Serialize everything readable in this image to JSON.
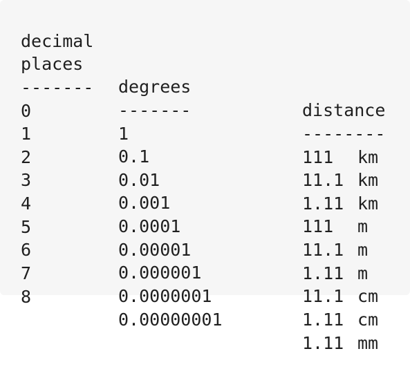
{
  "header": {
    "col1_line1": "decimal",
    "col1_line2": "places",
    "col2": "degrees",
    "col3": "distance",
    "rule1": "-------",
    "rule2": "-------",
    "rule3": "--------"
  },
  "rows": [
    {
      "places": "0",
      "degrees": "1",
      "distance": "111",
      "unit": "km"
    },
    {
      "places": "1",
      "degrees": "0.1",
      "distance": "11.1",
      "unit": "km"
    },
    {
      "places": "2",
      "degrees": "0.01",
      "distance": "1.11",
      "unit": "km"
    },
    {
      "places": "3",
      "degrees": "0.001",
      "distance": "111",
      "unit": "m"
    },
    {
      "places": "4",
      "degrees": "0.0001",
      "distance": "11.1",
      "unit": "m"
    },
    {
      "places": "5",
      "degrees": "0.00001",
      "distance": "1.11",
      "unit": "m"
    },
    {
      "places": "6",
      "degrees": "0.000001",
      "distance": "11.1",
      "unit": "cm"
    },
    {
      "places": "7",
      "degrees": "0.0000001",
      "distance": "1.11",
      "unit": "cm"
    },
    {
      "places": "8",
      "degrees": "0.00000001",
      "distance": "1.11",
      "unit": "mm"
    }
  ]
}
